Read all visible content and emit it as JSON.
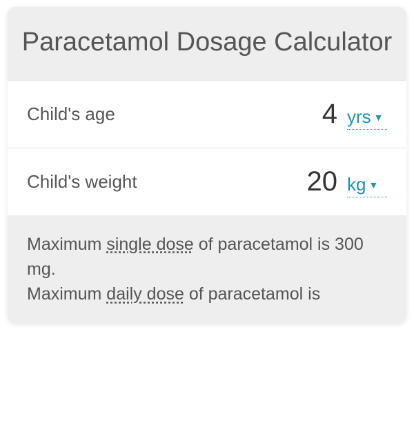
{
  "title": "Paracetamol Dosage Calculator",
  "inputs": {
    "age": {
      "label": "Child's age",
      "value": "4",
      "unit": "yrs"
    },
    "weight": {
      "label": "Child's weight",
      "value": "20",
      "unit": "kg"
    }
  },
  "result": {
    "line1_prefix": "Maximum ",
    "line1_underline": "single dose",
    "line1_suffix": " of paracetamol is 300 mg.",
    "line2_prefix": "Maximum ",
    "line2_underline": "daily dose",
    "line2_suffix": " of paracetamol is"
  },
  "colors": {
    "card_bg": "#eeeeee",
    "row_bg": "#ffffff",
    "text": "#555555",
    "value_text": "#333333",
    "accent": "#1b95b0",
    "border": "#e5e5e5"
  },
  "typography": {
    "title_fontsize": 38,
    "label_fontsize": 26,
    "value_fontsize": 40,
    "unit_fontsize": 26,
    "result_fontsize": 25
  }
}
